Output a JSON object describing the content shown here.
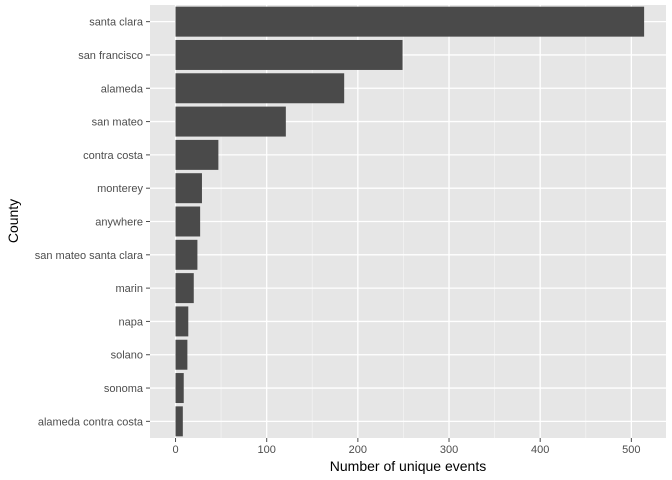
{
  "chart_data": {
    "type": "bar",
    "orientation": "horizontal",
    "title": "",
    "xlabel": "Number of unique events",
    "ylabel": "County",
    "xlim": [
      -28,
      538
    ],
    "x_ticks": [
      0,
      100,
      200,
      300,
      400,
      500
    ],
    "categories": [
      "santa clara",
      "san francisco",
      "alameda",
      "san mateo",
      "contra costa",
      "monterey",
      "anywhere",
      "san mateo santa clara",
      "marin",
      "napa",
      "solano",
      "sonoma",
      "alameda contra costa"
    ],
    "values": [
      514,
      249,
      185,
      121,
      47,
      29,
      27,
      24,
      20,
      14,
      13,
      9,
      8
    ],
    "grid": true,
    "legend": "none",
    "colors": {
      "bar": "#4a4a4a",
      "panel": "#e6e6e6",
      "grid_major": "#ffffff",
      "grid_minor": "#f2f2f2",
      "tick": "#4d4d4d"
    }
  }
}
